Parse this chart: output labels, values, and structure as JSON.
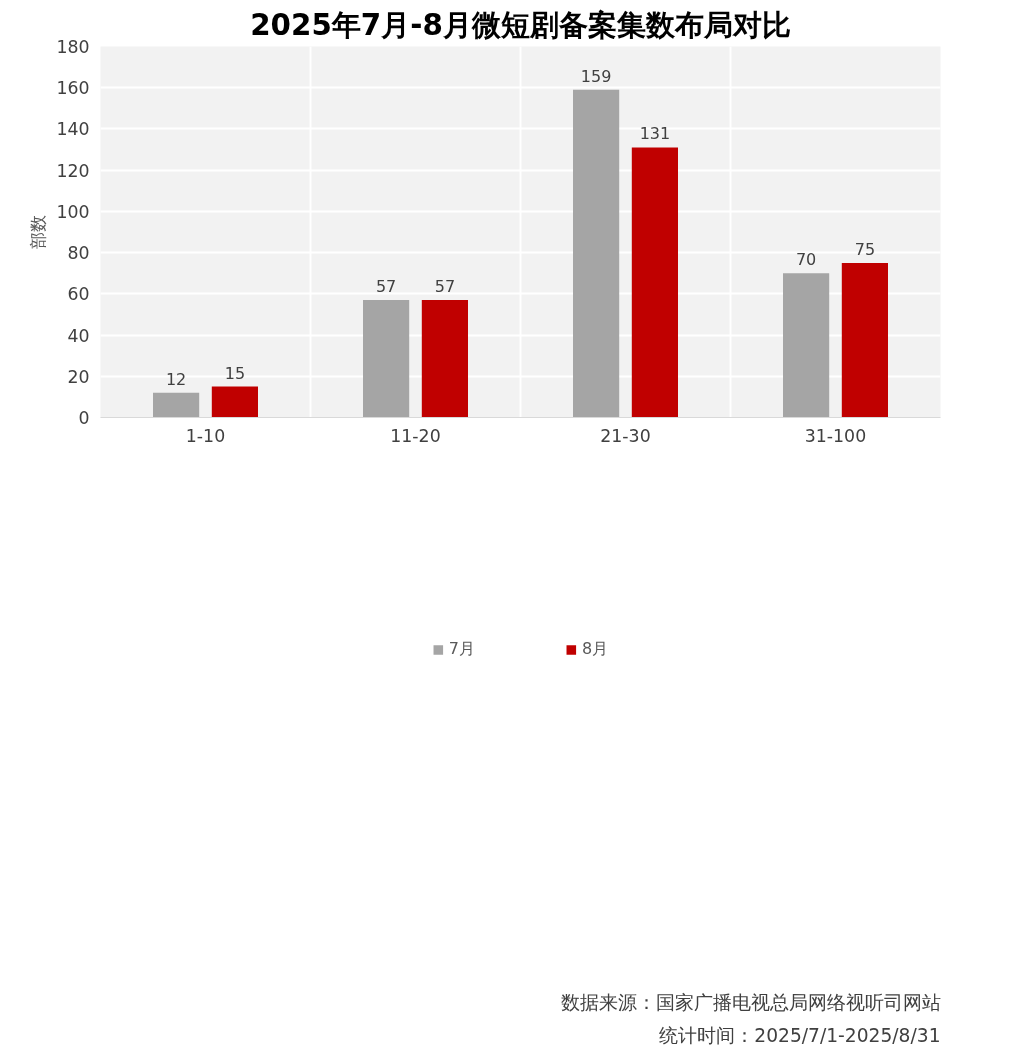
{
  "chart_data": {
    "type": "bar",
    "title": "2025年7月-8月微短剧备案集数布局对比",
    "ylabel": "部数",
    "categories": [
      "1-10",
      "11-20",
      "21-30",
      "31-100"
    ],
    "series": [
      {
        "name": "7月",
        "color": "#a5a5a5",
        "values": [
          12,
          57,
          159,
          70
        ]
      },
      {
        "name": "8月",
        "color": "#c00000",
        "values": [
          15,
          57,
          131,
          75
        ]
      }
    ],
    "ylim": [
      0,
      180
    ],
    "yticks": [
      0,
      20,
      40,
      60,
      80,
      100,
      120,
      140,
      160,
      180
    ],
    "grid": true,
    "legend": "bottom",
    "data_labels": true,
    "annotations": [
      "数据来源：国家广播电视总局网络视听司网站",
      "统计时间：2025/7/1-2025/8/31"
    ]
  }
}
